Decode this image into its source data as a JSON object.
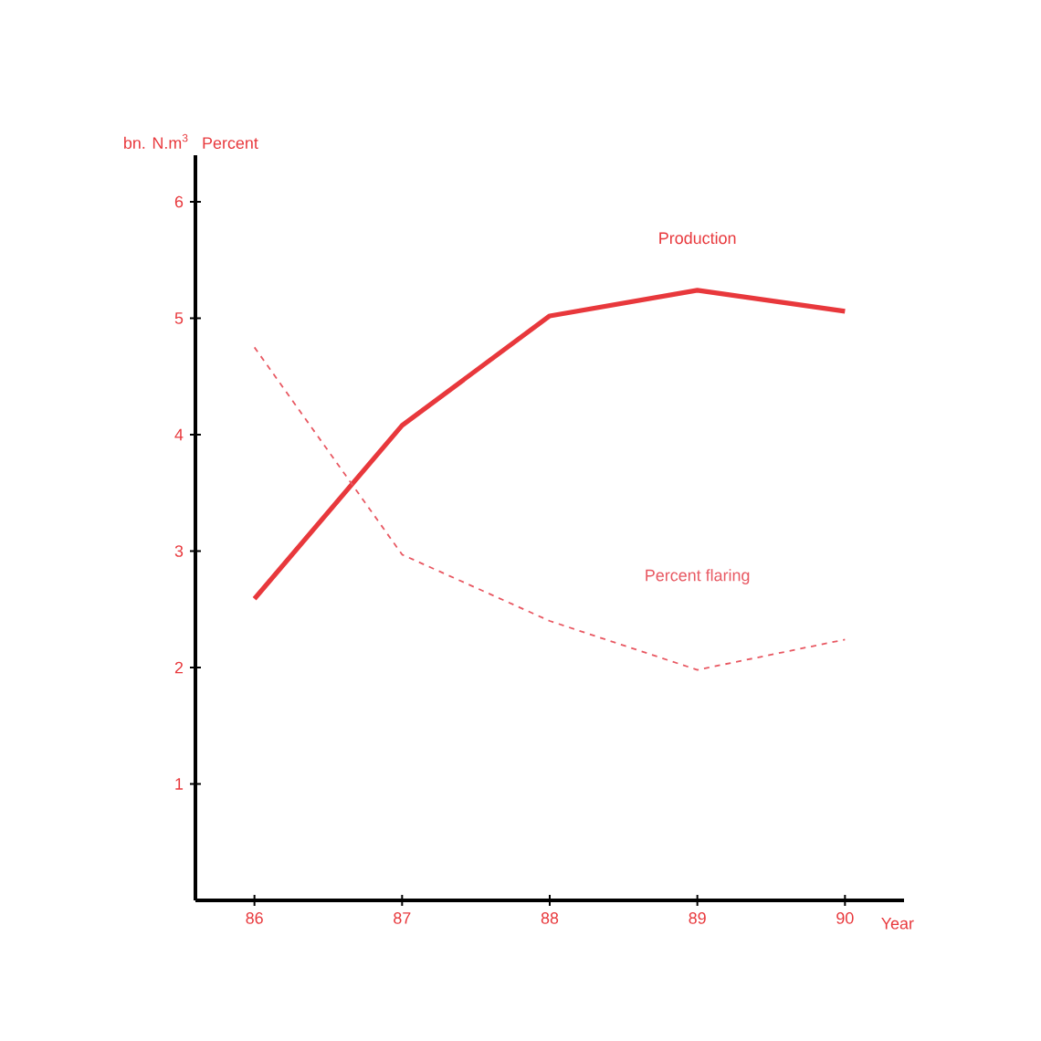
{
  "chart_data": {
    "type": "line",
    "xlabel": "Year",
    "ylabel": "bn. N.m$^{3}$",
    "annotations": [
      "Percent"
    ],
    "x": [
      86,
      87,
      88,
      89,
      90
    ],
    "xlim": [
      85.6,
      90.4
    ],
    "xticks": [
      86,
      87,
      88,
      89,
      90
    ],
    "ylim": [
      0,
      6.4
    ],
    "yticks": [
      1,
      2,
      3,
      4,
      5,
      6
    ],
    "series": [
      {
        "name": "Production",
        "color": "#e8383c",
        "line_style": "solid",
        "values": [
          2.59,
          4.08,
          5.02,
          5.24,
          5.06
        ]
      },
      {
        "name": "Percent flaring",
        "color": "#e85862",
        "line_style": "dashed",
        "values": [
          4.75,
          2.97,
          2.4,
          1.98,
          2.24
        ]
      }
    ]
  }
}
